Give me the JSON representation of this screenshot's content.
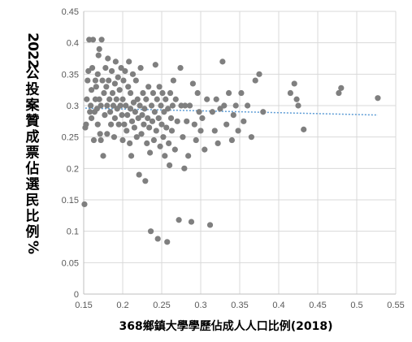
{
  "chart_data": {
    "type": "scatter",
    "title": "",
    "xlabel": "368鄉鎮大學學歷佔成人人口比例(2018)",
    "ylabel": "2022公投案贊成票佔選民比例%",
    "xlim": [
      0.15,
      0.55
    ],
    "ylim": [
      0,
      0.45
    ],
    "xticks": [
      "0.15",
      "0.2",
      "0.25",
      "0.3",
      "0.35",
      "0.4",
      "0.45",
      "0.5",
      "0.55"
    ],
    "yticks": [
      "0",
      "0.05",
      "0.1",
      "0.15",
      "0.2",
      "0.25",
      "0.3",
      "0.35",
      "0.4",
      "0.45"
    ],
    "grid": true,
    "marker_color": "#7f7f7f",
    "trendline": {
      "type": "linear",
      "color": "#5b9bd5",
      "style": "dotted",
      "x": [
        0.152,
        0.527
      ],
      "y": [
        0.296,
        0.285
      ]
    },
    "points": [
      [
        0.151,
        0.143
      ],
      [
        0.152,
        0.265
      ],
      [
        0.153,
        0.27
      ],
      [
        0.154,
        0.31
      ],
      [
        0.155,
        0.34
      ],
      [
        0.156,
        0.355
      ],
      [
        0.157,
        0.405
      ],
      [
        0.158,
        0.29
      ],
      [
        0.159,
        0.3
      ],
      [
        0.16,
        0.325
      ],
      [
        0.16,
        0.28
      ],
      [
        0.161,
        0.36
      ],
      [
        0.162,
        0.405
      ],
      [
        0.163,
        0.245
      ],
      [
        0.164,
        0.29
      ],
      [
        0.165,
        0.31
      ],
      [
        0.165,
        0.34
      ],
      [
        0.166,
        0.33
      ],
      [
        0.167,
        0.295
      ],
      [
        0.168,
        0.27
      ],
      [
        0.168,
        0.35
      ],
      [
        0.169,
        0.38
      ],
      [
        0.17,
        0.39
      ],
      [
        0.17,
        0.31
      ],
      [
        0.171,
        0.255
      ],
      [
        0.172,
        0.245
      ],
      [
        0.172,
        0.3
      ],
      [
        0.173,
        0.405
      ],
      [
        0.174,
        0.34
      ],
      [
        0.175,
        0.22
      ],
      [
        0.176,
        0.32
      ],
      [
        0.177,
        0.285
      ],
      [
        0.178,
        0.36
      ],
      [
        0.179,
        0.33
      ],
      [
        0.18,
        0.3
      ],
      [
        0.18,
        0.255
      ],
      [
        0.181,
        0.375
      ],
      [
        0.182,
        0.34
      ],
      [
        0.183,
        0.31
      ],
      [
        0.184,
        0.29
      ],
      [
        0.185,
        0.27
      ],
      [
        0.186,
        0.355
      ],
      [
        0.187,
        0.32
      ],
      [
        0.188,
        0.3
      ],
      [
        0.189,
        0.25
      ],
      [
        0.19,
        0.28
      ],
      [
        0.19,
        0.335
      ],
      [
        0.191,
        0.37
      ],
      [
        0.192,
        0.31
      ],
      [
        0.193,
        0.295
      ],
      [
        0.194,
        0.345
      ],
      [
        0.195,
        0.27
      ],
      [
        0.196,
        0.325
      ],
      [
        0.197,
        0.3
      ],
      [
        0.198,
        0.36
      ],
      [
        0.199,
        0.285
      ],
      [
        0.2,
        0.245
      ],
      [
        0.2,
        0.31
      ],
      [
        0.201,
        0.34
      ],
      [
        0.202,
        0.27
      ],
      [
        0.203,
        0.355
      ],
      [
        0.204,
        0.3
      ],
      [
        0.205,
        0.26
      ],
      [
        0.206,
        0.285
      ],
      [
        0.207,
        0.33
      ],
      [
        0.208,
        0.37
      ],
      [
        0.209,
        0.24
      ],
      [
        0.21,
        0.295
      ],
      [
        0.21,
        0.32
      ],
      [
        0.211,
        0.22
      ],
      [
        0.212,
        0.275
      ],
      [
        0.213,
        0.35
      ],
      [
        0.214,
        0.305
      ],
      [
        0.215,
        0.265
      ],
      [
        0.216,
        0.29
      ],
      [
        0.217,
        0.34
      ],
      [
        0.218,
        0.25
      ],
      [
        0.219,
        0.31
      ],
      [
        0.22,
        0.28
      ],
      [
        0.221,
        0.19
      ],
      [
        0.222,
        0.3
      ],
      [
        0.223,
        0.36
      ],
      [
        0.224,
        0.255
      ],
      [
        0.225,
        0.285
      ],
      [
        0.226,
        0.32
      ],
      [
        0.227,
        0.27
      ],
      [
        0.228,
        0.295
      ],
      [
        0.229,
        0.18
      ],
      [
        0.23,
        0.31
      ],
      [
        0.231,
        0.24
      ],
      [
        0.232,
        0.28
      ],
      [
        0.233,
        0.33
      ],
      [
        0.234,
        0.265
      ],
      [
        0.235,
        0.225
      ],
      [
        0.236,
        0.1
      ],
      [
        0.237,
        0.3
      ],
      [
        0.238,
        0.275
      ],
      [
        0.239,
        0.32
      ],
      [
        0.24,
        0.245
      ],
      [
        0.241,
        0.29
      ],
      [
        0.242,
        0.365
      ],
      [
        0.243,
        0.26
      ],
      [
        0.244,
        0.31
      ],
      [
        0.245,
        0.088
      ],
      [
        0.246,
        0.28
      ],
      [
        0.247,
        0.33
      ],
      [
        0.248,
        0.235
      ],
      [
        0.249,
        0.3
      ],
      [
        0.25,
        0.27
      ],
      [
        0.251,
        0.32
      ],
      [
        0.252,
        0.25
      ],
      [
        0.253,
        0.29
      ],
      [
        0.254,
        0.22
      ],
      [
        0.255,
        0.31
      ],
      [
        0.256,
        0.265
      ],
      [
        0.257,
        0.083
      ],
      [
        0.258,
        0.295
      ],
      [
        0.259,
        0.24
      ],
      [
        0.26,
        0.205
      ],
      [
        0.261,
        0.32
      ],
      [
        0.262,
        0.28
      ],
      [
        0.263,
        0.26
      ],
      [
        0.264,
        0.3
      ],
      [
        0.265,
        0.34
      ],
      [
        0.267,
        0.23
      ],
      [
        0.268,
        0.31
      ],
      [
        0.27,
        0.275
      ],
      [
        0.272,
        0.118
      ],
      [
        0.274,
        0.36
      ],
      [
        0.275,
        0.3
      ],
      [
        0.277,
        0.25
      ],
      [
        0.279,
        0.2
      ],
      [
        0.28,
        0.3
      ],
      [
        0.282,
        0.275
      ],
      [
        0.284,
        0.22
      ],
      [
        0.286,
        0.3
      ],
      [
        0.288,
        0.115
      ],
      [
        0.29,
        0.335
      ],
      [
        0.292,
        0.27
      ],
      [
        0.294,
        0.245
      ],
      [
        0.296,
        0.32
      ],
      [
        0.298,
        0.29
      ],
      [
        0.3,
        0.26
      ],
      [
        0.302,
        0.28
      ],
      [
        0.305,
        0.23
      ],
      [
        0.308,
        0.31
      ],
      [
        0.312,
        0.11
      ],
      [
        0.315,
        0.29
      ],
      [
        0.318,
        0.26
      ],
      [
        0.32,
        0.31
      ],
      [
        0.322,
        0.24
      ],
      [
        0.325,
        0.295
      ],
      [
        0.328,
        0.37
      ],
      [
        0.33,
        0.3
      ],
      [
        0.333,
        0.27
      ],
      [
        0.336,
        0.32
      ],
      [
        0.34,
        0.245
      ],
      [
        0.342,
        0.285
      ],
      [
        0.345,
        0.3
      ],
      [
        0.348,
        0.26
      ],
      [
        0.352,
        0.32
      ],
      [
        0.355,
        0.275
      ],
      [
        0.36,
        0.3
      ],
      [
        0.365,
        0.25
      ],
      [
        0.37,
        0.34
      ],
      [
        0.375,
        0.35
      ],
      [
        0.38,
        0.29
      ],
      [
        0.415,
        0.32
      ],
      [
        0.42,
        0.335
      ],
      [
        0.423,
        0.31
      ],
      [
        0.425,
        0.3
      ],
      [
        0.432,
        0.262
      ],
      [
        0.477,
        0.32
      ],
      [
        0.48,
        0.328
      ],
      [
        0.527,
        0.312
      ]
    ]
  }
}
